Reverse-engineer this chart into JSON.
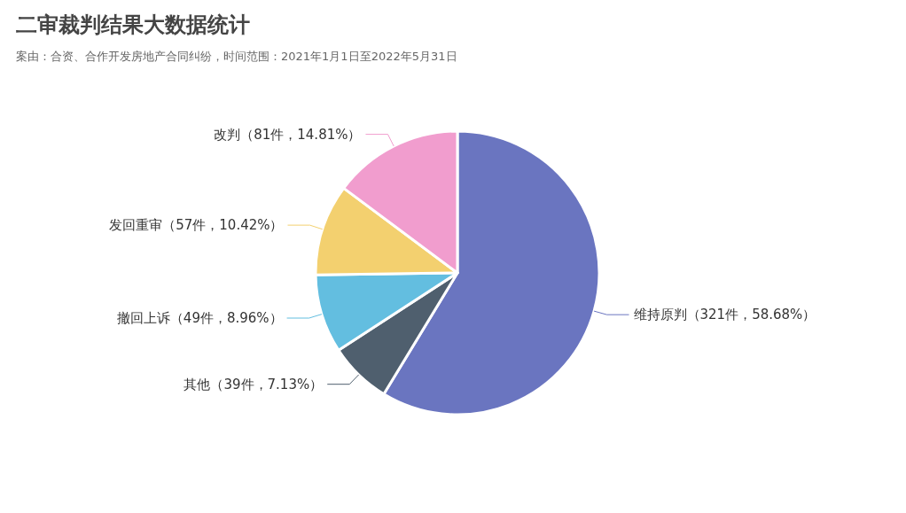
{
  "chart_data": {
    "type": "pie",
    "title": "二审裁判结果大数据统计",
    "subtitle": "案由：合资、合作开发房地产合同纠纷，时间范围：2021年1月1日至2022年5月31日",
    "categories": [
      "维持原判",
      "其他",
      "撤回上诉",
      "发回重审",
      "改判"
    ],
    "values": [
      321,
      39,
      49,
      57,
      81
    ],
    "value_labels": [
      "（321件，58.68%）",
      "（39件，7.13%）",
      "（49件，8.96%）",
      "（57件，10.42%）",
      "（81件，14.81%）"
    ],
    "colors": [
      "#6a75c0",
      "#4f5f6e",
      "#63bee0",
      "#f3d06f",
      "#f19dce"
    ]
  }
}
